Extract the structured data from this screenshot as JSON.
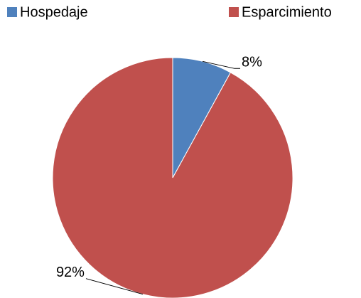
{
  "chart_data": {
    "type": "pie",
    "categories": [
      "Hospedaje",
      "Esparcimiento"
    ],
    "values": [
      8,
      92
    ],
    "value_labels": [
      "8%",
      "92%"
    ],
    "colors": [
      "#4f81bd",
      "#c0504d"
    ],
    "legend": "top"
  }
}
